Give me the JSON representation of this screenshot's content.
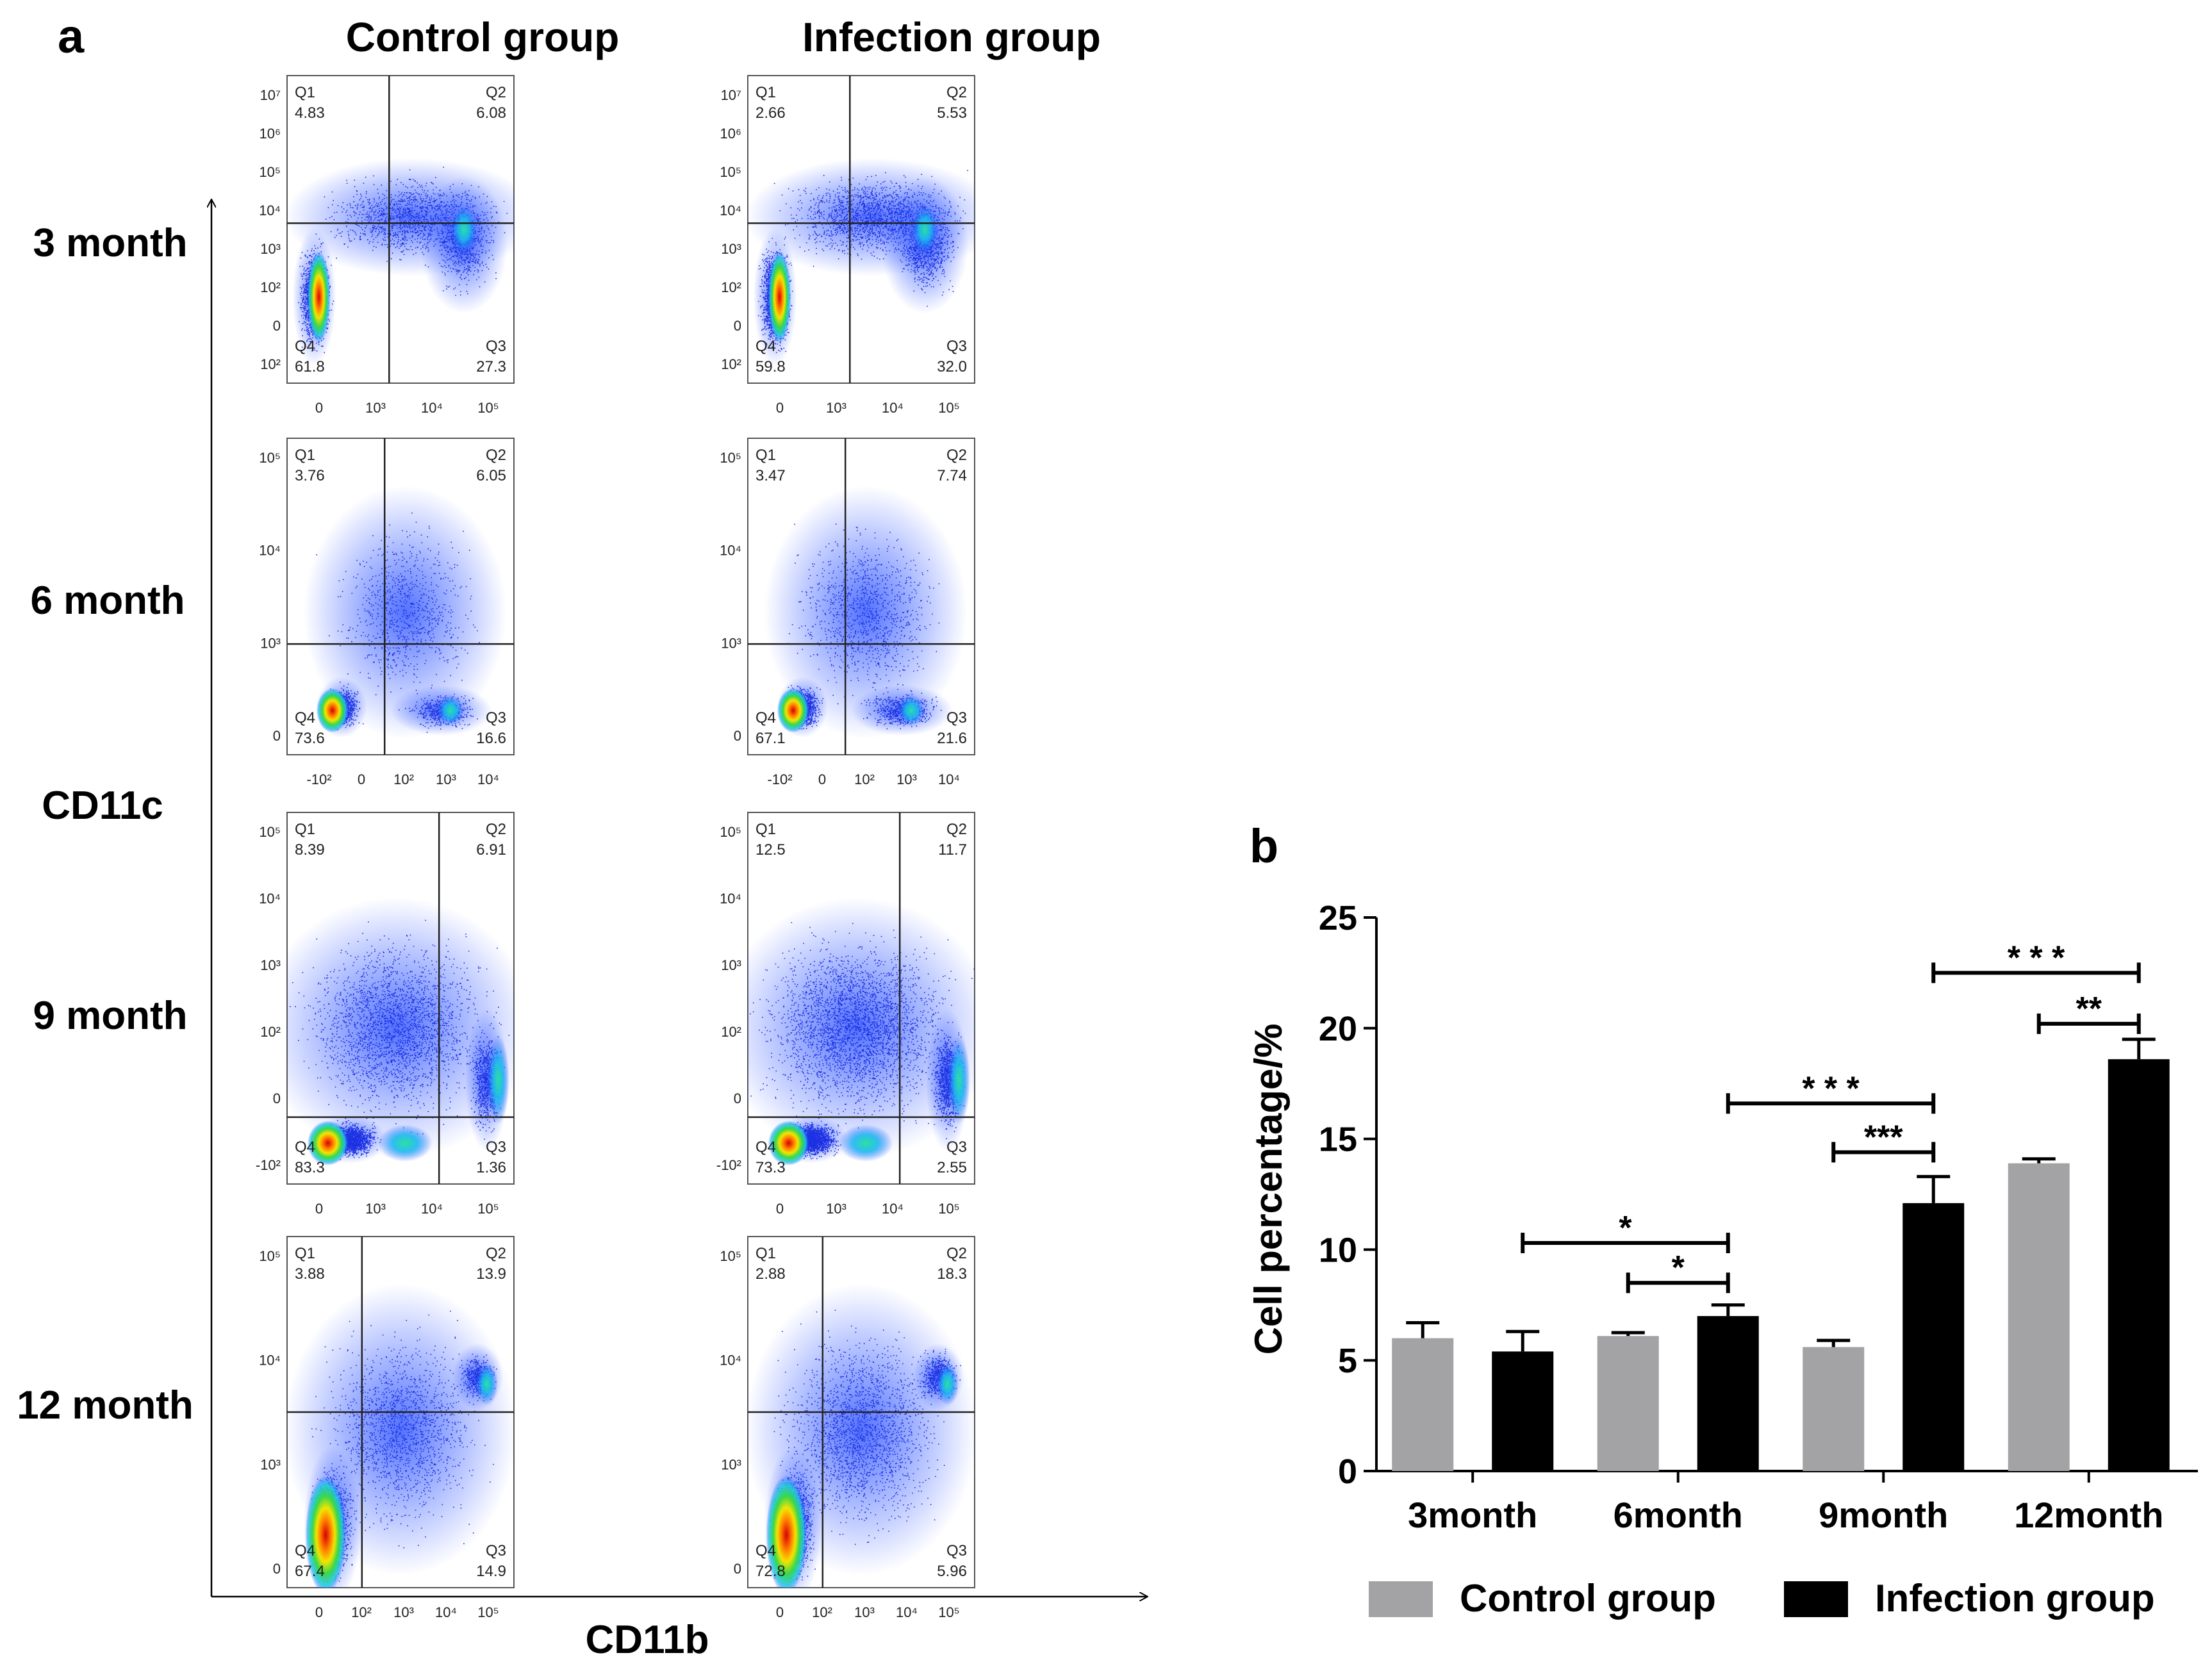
{
  "panel_a": {
    "label": "a",
    "col_headers": [
      "Control  group",
      "Infection  group"
    ],
    "row_labels": [
      "3 month",
      "6 month",
      "9 month",
      "12 month"
    ],
    "y_axis_label": "CD11c",
    "x_axis_label": "CD11b",
    "quadrant_names": [
      "Q1",
      "Q2",
      "Q3",
      "Q4"
    ],
    "rows": [
      {
        "yticks": [
          "10⁷",
          "10⁶",
          "10⁵",
          "10⁴",
          "10³",
          "10²",
          "0",
          "10²"
        ],
        "xticks": [
          "0",
          "10³",
          "10⁴",
          "10⁵"
        ],
        "plots": [
          {
            "q1": "4.83",
            "q2": "6.08",
            "q3": "27.3",
            "q4": "61.8"
          },
          {
            "q1": "2.66",
            "q2": "5.53",
            "q3": "32.0",
            "q4": "59.8"
          }
        ]
      },
      {
        "yticks": [
          "10⁵",
          "10⁴",
          "10³",
          "0"
        ],
        "xticks": [
          "-10²",
          "0",
          "10²",
          "10³",
          "10⁴"
        ],
        "plots": [
          {
            "q1": "3.76",
            "q2": "6.05",
            "q3": "16.6",
            "q4": "73.6"
          },
          {
            "q1": "3.47",
            "q2": "7.74",
            "q3": "21.6",
            "q4": "67.1"
          }
        ]
      },
      {
        "yticks": [
          "10⁵",
          "10⁴",
          "10³",
          "10²",
          "0",
          "-10²"
        ],
        "xticks": [
          "0",
          "10³",
          "10⁴",
          "10⁵"
        ],
        "plots": [
          {
            "q1": "8.39",
            "q2": "6.91",
            "q3": "1.36",
            "q4": "83.3"
          },
          {
            "q1": "12.5",
            "q2": "11.7",
            "q3": "2.55",
            "q4": "73.3"
          }
        ]
      },
      {
        "yticks": [
          "10⁵",
          "10⁴",
          "10³",
          "0"
        ],
        "xticks": [
          "0",
          "10²",
          "10³",
          "10⁴",
          "10⁵"
        ],
        "plots": [
          {
            "q1": "3.88",
            "q2": "13.9",
            "q3": "14.9",
            "q4": "67.4"
          },
          {
            "q1": "2.88",
            "q2": "18.3",
            "q3": "5.96",
            "q4": "72.8"
          }
        ]
      }
    ]
  },
  "chart_data": {
    "label": "b",
    "type": "bar",
    "ylabel": "Cell percentage/%",
    "xlabel": "",
    "ylim": [
      0,
      25
    ],
    "yticks": [
      0,
      5,
      10,
      15,
      20,
      25
    ],
    "categories": [
      "3month",
      "6month",
      "9month",
      "12month"
    ],
    "series": [
      {
        "name": "Control group",
        "color": "#a3a3a5",
        "values": [
          6.0,
          6.1,
          5.6,
          13.9
        ],
        "errors": [
          0.7,
          0.15,
          0.3,
          0.2
        ]
      },
      {
        "name": "Infection group",
        "color": "#000000",
        "values": [
          5.4,
          7.0,
          12.1,
          18.6
        ],
        "errors": [
          0.9,
          0.5,
          1.2,
          0.9
        ]
      }
    ],
    "significance": [
      {
        "label": "*",
        "from": [
          0,
          1
        ],
        "to": [
          1,
          1
        ],
        "y": 10.3
      },
      {
        "label": "*",
        "from": [
          1,
          0
        ],
        "to": [
          1,
          1
        ],
        "y": 8.5
      },
      {
        "label": "* * *",
        "from": [
          1,
          1
        ],
        "to": [
          2,
          1
        ],
        "y": 16.6
      },
      {
        "label": "***",
        "from": [
          2,
          0
        ],
        "to": [
          2,
          1
        ],
        "y": 14.4
      },
      {
        "label": "* * *",
        "from": [
          2,
          1
        ],
        "to": [
          3,
          1
        ],
        "y": 22.5
      },
      {
        "label": "**",
        "from": [
          3,
          0
        ],
        "to": [
          3,
          1
        ],
        "y": 20.2
      }
    ],
    "legend": [
      "Control group",
      "Infection group"
    ]
  }
}
